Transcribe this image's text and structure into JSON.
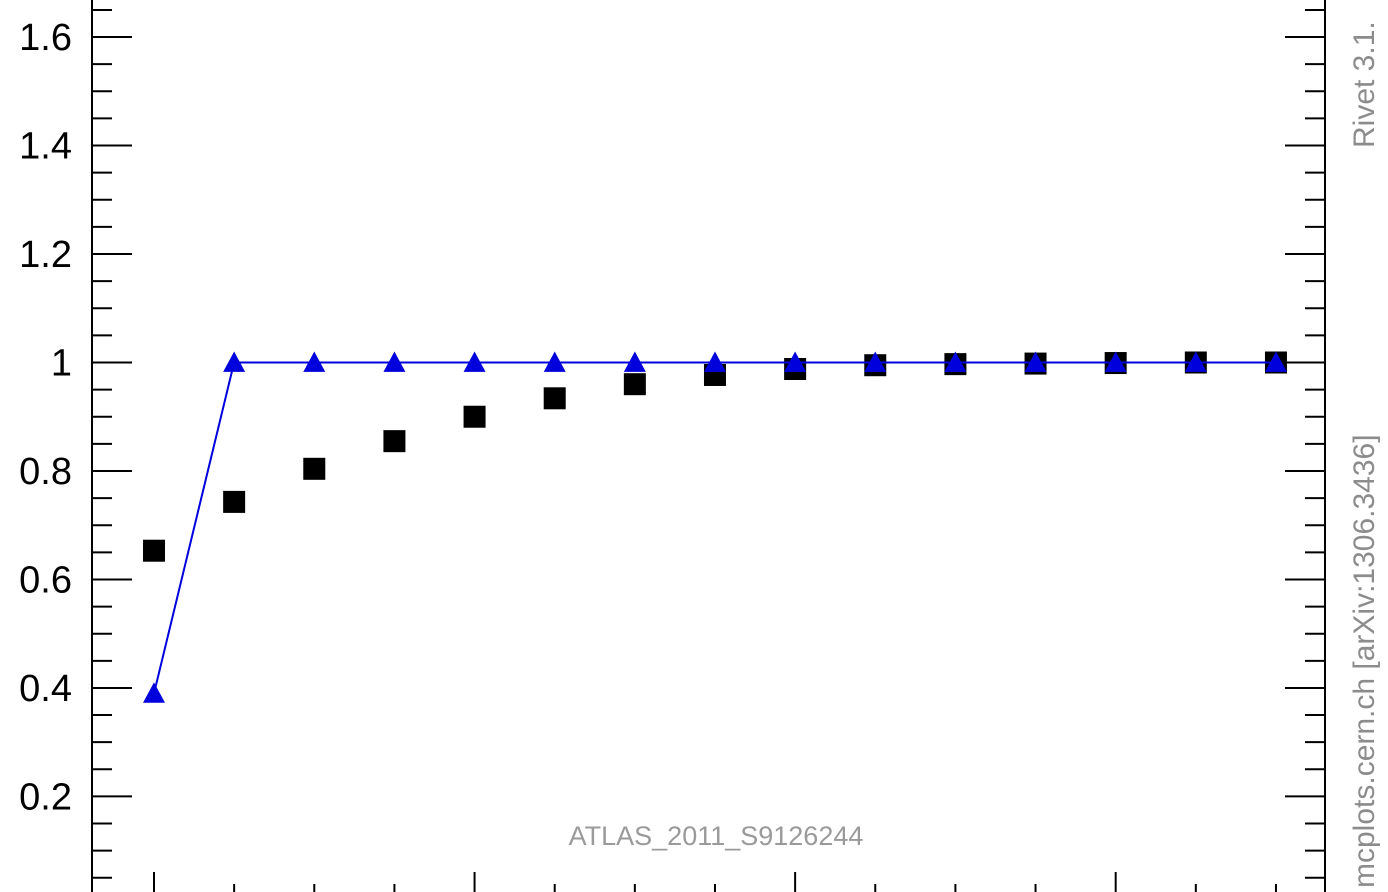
{
  "chart_data": {
    "type": "scatter",
    "title": "",
    "xlabel": "",
    "ylabel": "",
    "xlim": [
      0.5,
      15.0
    ],
    "ylim": [
      0.0,
      1.66
    ],
    "yticks": [
      "1.6",
      "1.4",
      "1.2",
      "1",
      "0.8",
      "0.6",
      "0.4",
      "0.2"
    ],
    "watermark": "ATLAS_2011_S9126244",
    "side_labels": {
      "top": "Rivet 3.1.",
      "bottom": "mcplots.cern.ch [arXiv:1306.3436]"
    },
    "series": [
      {
        "marker": "square",
        "color": "#000000",
        "line": false,
        "x": [
          1,
          2,
          3,
          4,
          5,
          6,
          7,
          8,
          9,
          10,
          11,
          12,
          13,
          14,
          15
        ],
        "y": [
          0.653,
          0.743,
          0.804,
          0.855,
          0.9,
          0.934,
          0.96,
          0.977,
          0.988,
          0.995,
          0.997,
          0.998,
          0.999,
          1.0,
          1.0
        ]
      },
      {
        "marker": "triangle",
        "color": "#0000dd",
        "line": true,
        "x": [
          1,
          2,
          3,
          4,
          5,
          6,
          7,
          8,
          9,
          10,
          11,
          12,
          13,
          14,
          15
        ],
        "y": [
          0.39,
          1.0,
          1.0,
          1.0,
          1.0,
          1.0,
          1.0,
          1.0,
          1.0,
          1.0,
          1.0,
          1.0,
          1.0,
          1.0,
          1.0
        ]
      }
    ]
  }
}
